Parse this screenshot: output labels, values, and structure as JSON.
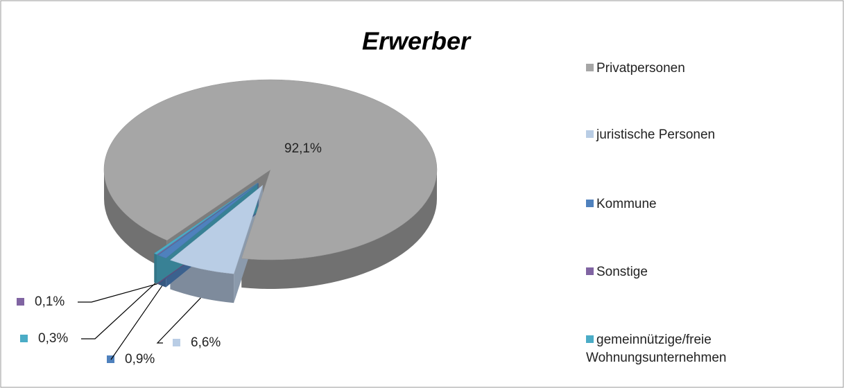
{
  "chart_data": {
    "type": "pie",
    "title": "Erwerber",
    "categories": [
      "Privatpersonen",
      "juristische Personen",
      "Kommune",
      "Sonstige",
      "gemeinnützige/freie Wohnungsunternehmen"
    ],
    "values": [
      92.1,
      6.6,
      0.9,
      0.1,
      0.3
    ],
    "value_labels": [
      "92,1%",
      "6,6%",
      "0,9%",
      "0,1%",
      "0,3%"
    ],
    "colors": [
      "#a6a6a6",
      "#b9cde5",
      "#4f81bd",
      "#8064a2",
      "#4bacc6"
    ],
    "legend": "right"
  }
}
